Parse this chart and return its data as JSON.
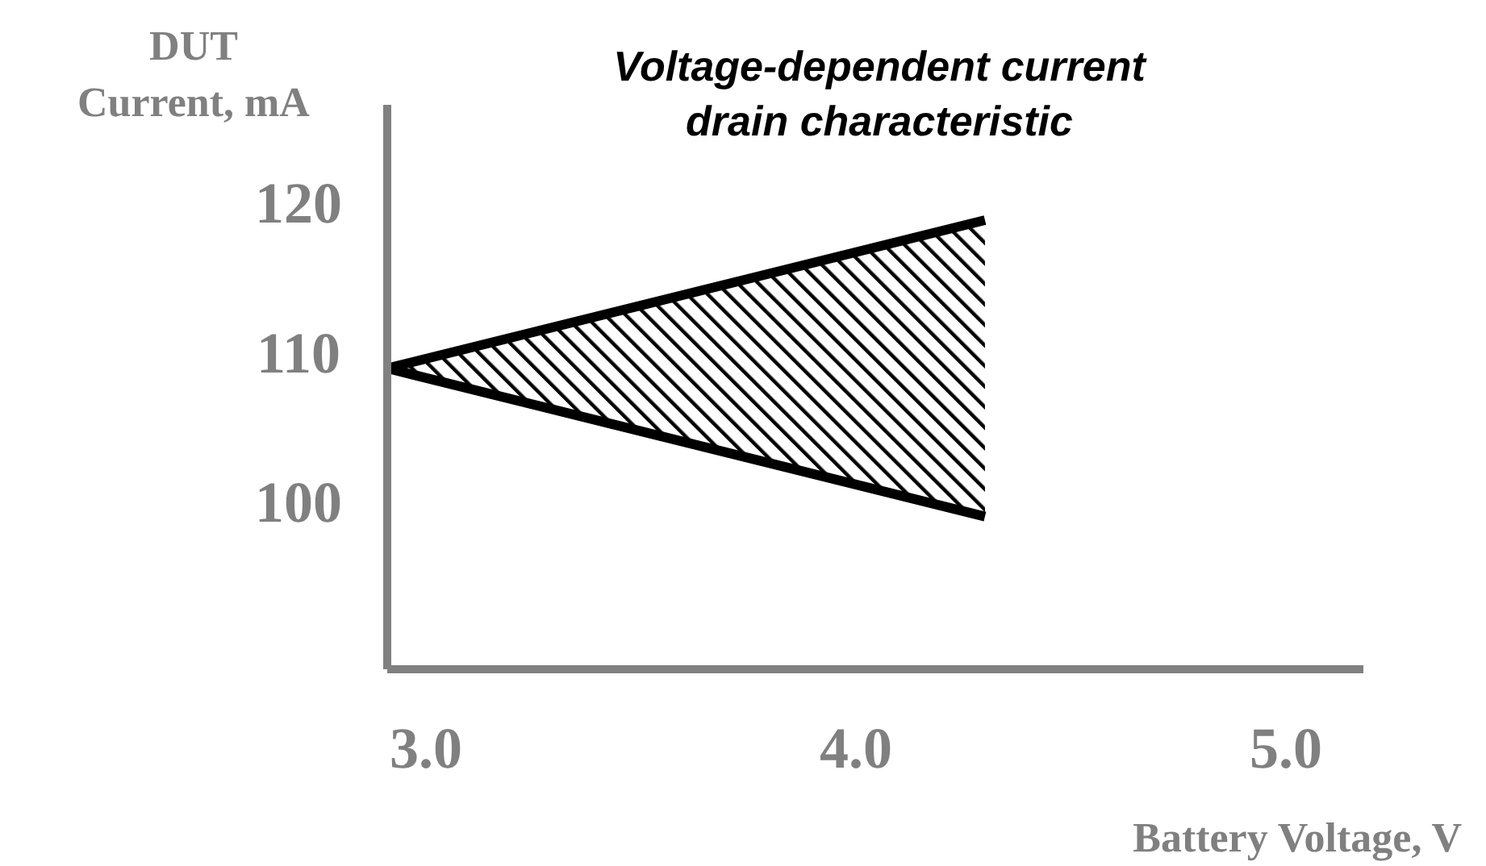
{
  "chart_data": {
    "type": "line",
    "title": "Voltage-dependent current\ndrain characteristic",
    "xlabel": "Battery Voltage, V",
    "ylabel": "DUT\nCurrent, mA",
    "x": [
      2.91,
      4.3
    ],
    "series": [
      {
        "color": "#000000",
        "values": [
          108.9,
          118.8
        ],
        "lower": [
          108.9,
          99.0
        ],
        "upper": [
          108.9,
          118.8
        ]
      },
      {
        "color": "#000000",
        "values": [
          108.9,
          99.0
        ]
      }
    ],
    "xlim": [
      2.91,
      5.18
    ],
    "xticks": [
      {
        "value": 3,
        "label": "3.0"
      },
      {
        "value": 4,
        "label": "4.0"
      },
      {
        "value": 5,
        "label": "5.0"
      }
    ],
    "ylim": [
      88.8,
      126.5
    ],
    "yticks": [
      100,
      110,
      120
    ]
  }
}
